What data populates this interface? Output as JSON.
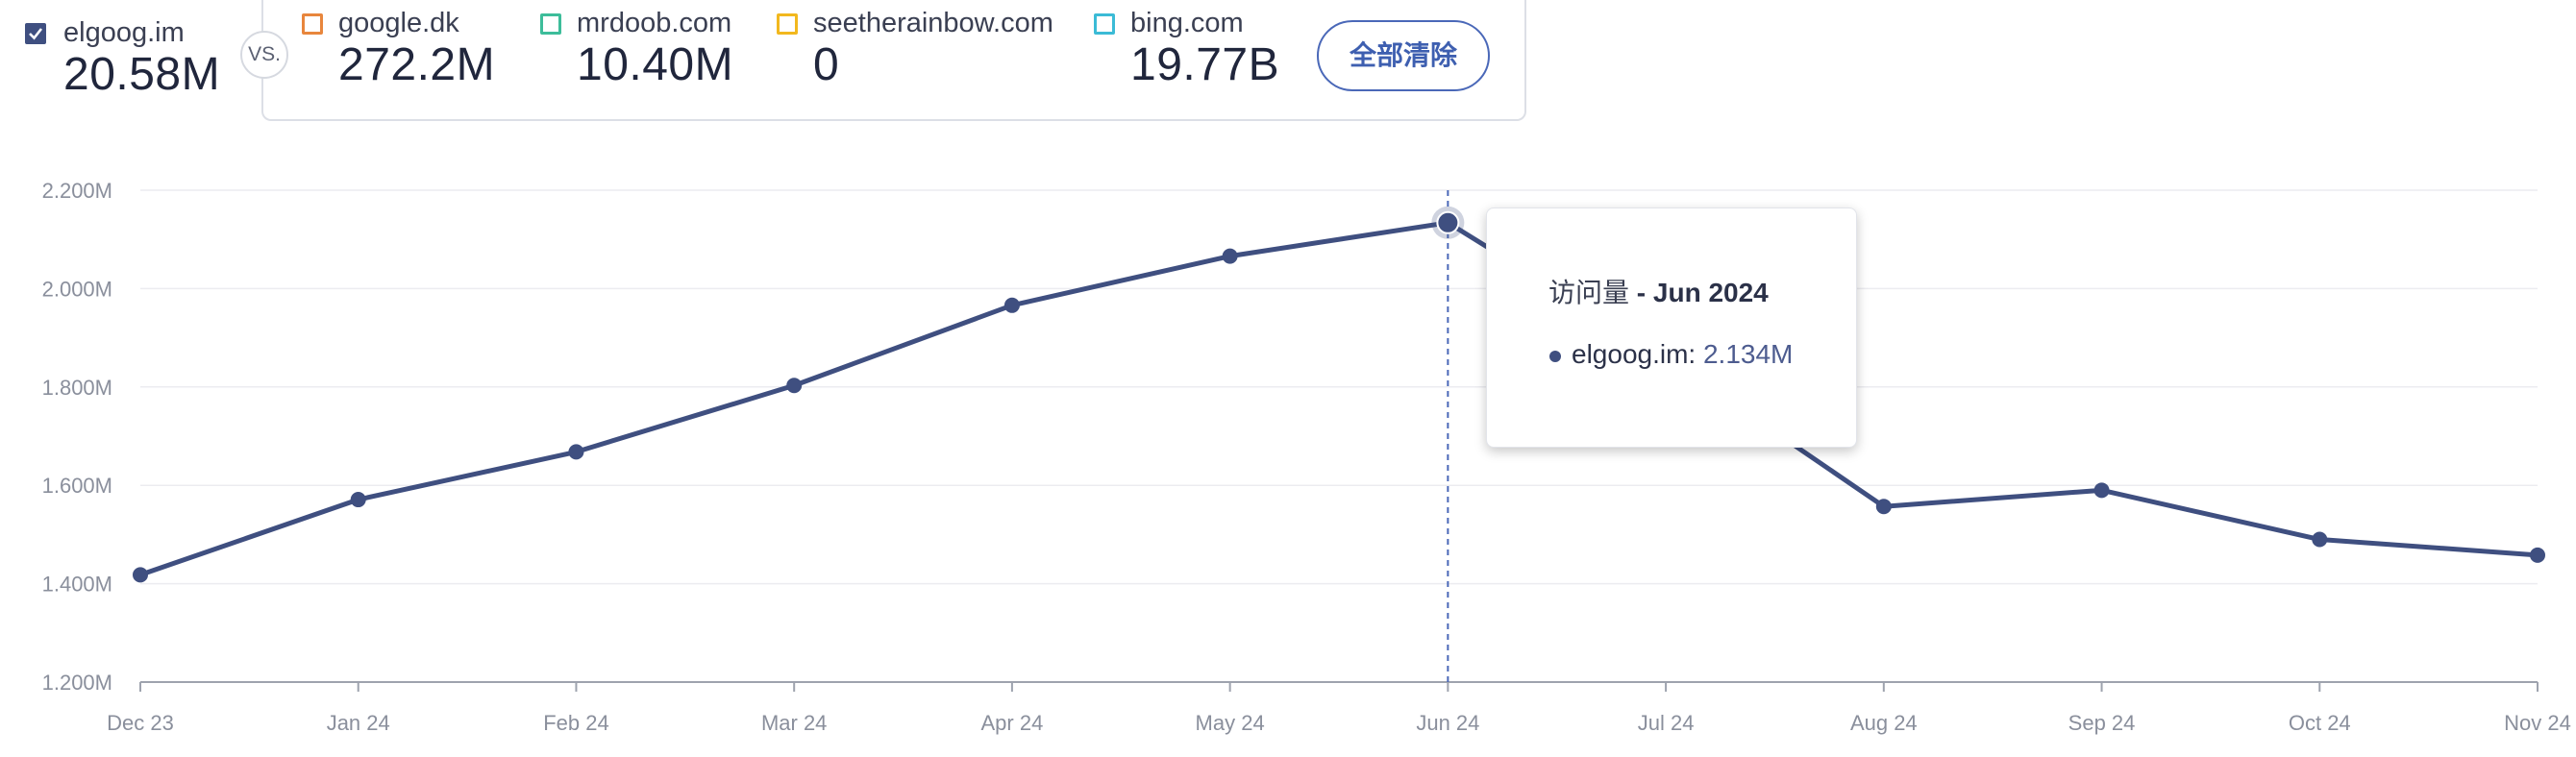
{
  "primary_site": {
    "name": "elgoog.im",
    "value": "20.58M",
    "checked": true
  },
  "vs_label": "VS.",
  "competitors": [
    {
      "name": "google.dk",
      "value": "272.2M",
      "color": "#e8863d"
    },
    {
      "name": "mrdoob.com",
      "value": "10.40M",
      "color": "#3dbd9a"
    },
    {
      "name": "seetherainbow.com",
      "value": "0",
      "color": "#f2b81e"
    },
    {
      "name": "bing.com",
      "value": "19.77B",
      "color": "#3bbbd6"
    }
  ],
  "clear_all_label": "全部清除",
  "colors": {
    "series": "#3f4f80",
    "accent": "#4a68b8",
    "grid": "#ececf0"
  },
  "tooltip": {
    "metric": "访问量",
    "separator": " - ",
    "period": "Jun 2024",
    "series_name": "elgoog.im:",
    "value": "2.134M"
  },
  "chart_data": {
    "type": "line",
    "categories": [
      "Dec 23",
      "Jan 24",
      "Feb 24",
      "Mar 24",
      "Apr 24",
      "May 24",
      "Jun 24",
      "Jul 24",
      "Aug 24",
      "Sep 24",
      "Oct 24",
      "Nov 24"
    ],
    "series": [
      {
        "name": "elgoog.im",
        "values": [
          1.418,
          1.571,
          1.668,
          1.803,
          1.966,
          2.066,
          2.134,
          1.86,
          1.557,
          1.59,
          1.49,
          1.458
        ]
      }
    ],
    "yticks": [
      "1.200M",
      "1.400M",
      "1.600M",
      "1.800M",
      "2.000M",
      "2.200M"
    ],
    "ylim": [
      1.2,
      2.2
    ],
    "highlight_index": 6,
    "grid": true
  }
}
